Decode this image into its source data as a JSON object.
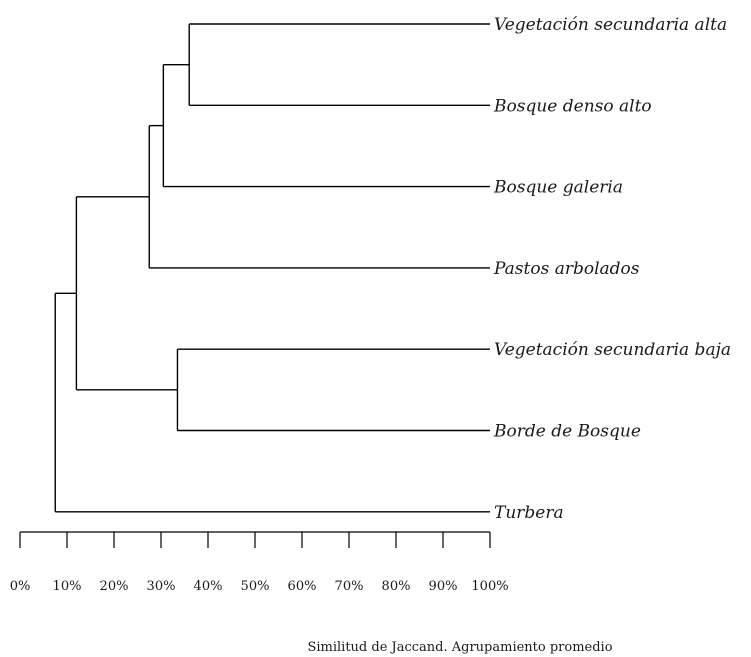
{
  "chart_data": {
    "type": "dendrogram",
    "caption": "Similitud de Jaccand. Agrupamiento promedio",
    "x_axis": {
      "range": [
        0,
        100
      ],
      "ticks": [
        0,
        10,
        20,
        30,
        40,
        50,
        60,
        70,
        80,
        90,
        100
      ],
      "tick_labels": [
        "0%",
        "10%",
        "20%",
        "30%",
        "40%",
        "50%",
        "60%",
        "70%",
        "80%",
        "90%",
        "100%"
      ]
    },
    "leaves": [
      "Vegetación secundaria alta",
      "Bosque denso alto",
      "Bosque galeria",
      "Pastos arbolados",
      "Vegetación secundaria baja",
      "Borde de Bosque",
      "Turbera"
    ],
    "merges": [
      {
        "id": "A",
        "children": [
          "leaf:0",
          "leaf:1"
        ],
        "similarity": 36
      },
      {
        "id": "B",
        "children": [
          "node:A",
          "leaf:2"
        ],
        "similarity": 30.5
      },
      {
        "id": "C",
        "children": [
          "node:B",
          "leaf:3"
        ],
        "similarity": 27.5
      },
      {
        "id": "D",
        "children": [
          "leaf:4",
          "leaf:5"
        ],
        "similarity": 33.5
      },
      {
        "id": "E",
        "children": [
          "node:C",
          "node:D"
        ],
        "similarity": 12
      },
      {
        "id": "F",
        "children": [
          "node:E",
          "leaf:6"
        ],
        "similarity": 7.5
      }
    ],
    "grid": false,
    "legend": "none"
  }
}
